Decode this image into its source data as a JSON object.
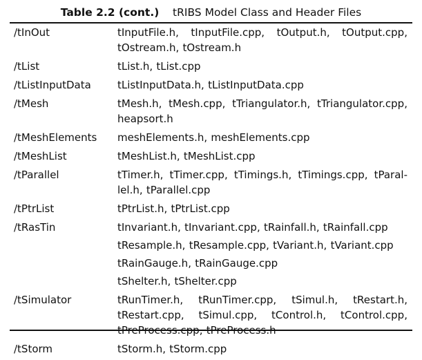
{
  "caption": {
    "label": "Table 2.2 (cont.)",
    "title": "tRIBS Model Class and Header Files"
  },
  "rows": [
    {
      "dir": "/tInOut",
      "lines": [
        [
          "tInputFile.h,",
          "tInputFile.cpp,",
          "tOutput.h,",
          "tOutput.cpp,"
        ],
        [
          "tOstream.h,",
          "tOstream.h"
        ]
      ]
    },
    {
      "dir": "/tList",
      "lines": [
        [
          "tList.h,",
          "tList.cpp"
        ]
      ]
    },
    {
      "dir": "/tListInputData",
      "lines": [
        [
          "tListInputData.h,",
          "tListInputData.cpp"
        ]
      ]
    },
    {
      "dir": "/tMesh",
      "lines": [
        [
          "tMesh.h,",
          "tMesh.cpp,",
          "tTriangulator.h,",
          "tTriangulator.cpp,"
        ],
        [
          "heapsort.h"
        ]
      ]
    },
    {
      "dir": "/tMeshElements",
      "lines": [
        [
          "meshElements.h,",
          "meshElements.cpp"
        ]
      ]
    },
    {
      "dir": "/tMeshList",
      "lines": [
        [
          "tMeshList.h,",
          "tMeshList.cpp"
        ]
      ]
    },
    {
      "dir": "/tParallel",
      "lines": [
        [
          "tTimer.h,",
          "tTimer.cpp,",
          "tTimings.h,",
          "tTimings.cpp,",
          "tParal-"
        ],
        [
          "lel.h,",
          "tParallel.cpp"
        ]
      ]
    },
    {
      "dir": "/tPtrList",
      "lines": [
        [
          "tPtrList.h,",
          "tPtrList.cpp"
        ]
      ]
    },
    {
      "dir": "/tRasTin",
      "spaced": true,
      "lines": [
        [
          "tInvariant.h,",
          "tInvariant.cpp,",
          "tRainfall.h,",
          "tRainfall.cpp"
        ],
        [
          "tResample.h,",
          "tResample.cpp,",
          "tVariant.h,",
          "tVariant.cpp"
        ],
        [
          "tRainGauge.h,",
          "tRainGauge.cpp"
        ],
        [
          "tShelter.h,",
          "tShelter.cpp"
        ]
      ]
    },
    {
      "dir": "/tSimulator",
      "lines": [
        [
          "tRunTimer.h,",
          "tRunTimer.cpp,",
          "tSimul.h,",
          "tRestart.h,"
        ],
        [
          "tRestart.cpp,",
          "tSimul.cpp,",
          "tControl.h,",
          "tControl.cpp,"
        ],
        [
          "tPreProcess.cpp,",
          "tPreProcess.h"
        ]
      ]
    },
    {
      "dir": "/tStorm",
      "lines": [
        [
          "tStorm.h,",
          "tStorm.cpp"
        ]
      ]
    }
  ]
}
